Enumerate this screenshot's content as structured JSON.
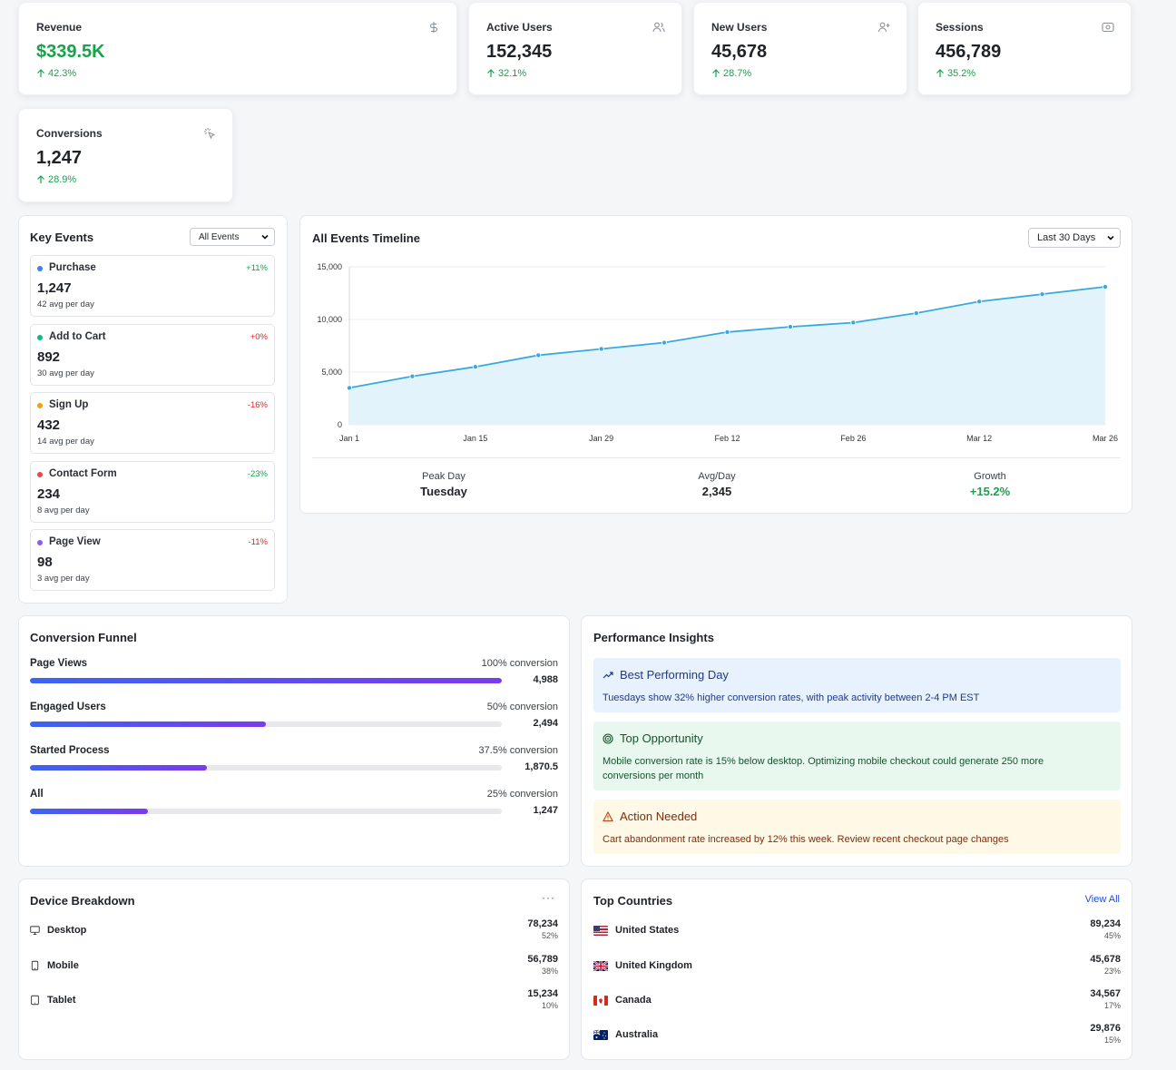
{
  "colors": {
    "positive": "#16a34a",
    "negative": "#dc2626",
    "line": "#38a9e0",
    "fill": "#e3f3fb",
    "funnel_start": "#3b64f3",
    "funnel_end": "#7c3aed",
    "link": "#1d4ed8"
  },
  "stats": [
    {
      "label": "Revenue",
      "value": "$339.5K",
      "change": "42.3%",
      "icon": "dollar-icon"
    },
    {
      "label": "Active Users",
      "value": "152,345",
      "change": "32.1%",
      "icon": "users-icon"
    },
    {
      "label": "New Users",
      "value": "45,678",
      "change": "28.7%",
      "icon": "user-plus-icon"
    },
    {
      "label": "Sessions",
      "value": "456,789",
      "change": "35.2%",
      "icon": "eye-icon"
    },
    {
      "label": "Conversions",
      "value": "1,247",
      "change": "28.9%",
      "icon": "pointer-click-icon"
    }
  ],
  "key_events": {
    "title": "Key Events",
    "filter": "All Events",
    "items": [
      {
        "name": "Purchase",
        "pct": "+11%",
        "value": "1,247",
        "avg": "42 avg per day",
        "dot": "#3b82f6",
        "trend": "up"
      },
      {
        "name": "Add to Cart",
        "pct": "+0%",
        "value": "892",
        "avg": "30 avg per day",
        "dot": "#10b981",
        "trend": "down"
      },
      {
        "name": "Sign Up",
        "pct": "-16%",
        "value": "432",
        "avg": "14 avg per day",
        "dot": "#f59e0b",
        "trend": "down"
      },
      {
        "name": "Contact Form",
        "pct": "-23%",
        "value": "234",
        "avg": "8 avg per day",
        "dot": "#ef4444",
        "trend": "up"
      },
      {
        "name": "Page View",
        "pct": "-11%",
        "value": "98",
        "avg": "3 avg per day",
        "dot": "#8b5cf6",
        "trend": "down"
      }
    ]
  },
  "timeline": {
    "title": "All Events Timeline",
    "range": "Last 30 Days",
    "footer": [
      {
        "label": "Peak Day",
        "value": "Tuesday"
      },
      {
        "label": "Avg/Day",
        "value": "2,345"
      },
      {
        "label": "Growth",
        "value": "+15.2%"
      }
    ]
  },
  "chart_data": {
    "type": "area",
    "x": [
      "Jan 1",
      "Jan 8",
      "Jan 15",
      "Jan 22",
      "Jan 29",
      "Feb 5",
      "Feb 12",
      "Feb 19",
      "Feb 26",
      "Mar 5",
      "Mar 12",
      "Mar 19",
      "Mar 26"
    ],
    "x_tick_labels": [
      "Jan 1",
      "Jan 15",
      "Jan 29",
      "Feb 12",
      "Feb 26",
      "Mar 12",
      "Mar 26"
    ],
    "y_tick_labels": [
      "15,000",
      "10,000",
      "5,000",
      "0"
    ],
    "values": [
      3500,
      4600,
      5500,
      6600,
      7200,
      7800,
      8800,
      9300,
      9700,
      10600,
      11700,
      12400,
      13100
    ],
    "ylim": [
      0,
      15000
    ],
    "grid": true
  },
  "funnel": {
    "title": "Conversion Funnel",
    "steps": [
      {
        "label": "Page Views",
        "conversion": "100% conversion",
        "count": "4,988",
        "fraction": 1.0
      },
      {
        "label": "Engaged Users",
        "conversion": "50% conversion",
        "count": "2,494",
        "fraction": 0.5
      },
      {
        "label": "Started Process",
        "conversion": "37.5% conversion",
        "count": "1,870.5",
        "fraction": 0.375
      },
      {
        "label": "All",
        "conversion": "25% conversion",
        "count": "1,247",
        "fraction": 0.25
      }
    ]
  },
  "insights": {
    "title": "Performance Insights",
    "items": [
      {
        "title": "Best Performing Day",
        "body": "Tuesdays show 32% higher conversion rates, with peak activity between 2-4 PM EST",
        "icon": "trending-up-icon",
        "bg": "#e8f1fe",
        "fg": "#1e3a8a"
      },
      {
        "title": "Top Opportunity",
        "body": "Mobile conversion rate is 15% below desktop. Optimizing mobile checkout could generate 250 more conversions per month",
        "icon": "target-icon",
        "bg": "#e8f8ee",
        "fg": "#14532d"
      },
      {
        "title": "Action Needed",
        "body": "Cart abandonment rate increased by 12% this week. Review recent checkout page changes",
        "icon": "warning-icon",
        "bg": "#fef8e7",
        "fg": "#7c2d12"
      }
    ]
  },
  "devices": {
    "title": "Device Breakdown",
    "more": "···",
    "items": [
      {
        "name": "Desktop",
        "value": "78,234",
        "pct": "52%",
        "icon": "monitor-icon"
      },
      {
        "name": "Mobile",
        "value": "56,789",
        "pct": "38%",
        "icon": "phone-icon"
      },
      {
        "name": "Tablet",
        "value": "15,234",
        "pct": "10%",
        "icon": "tablet-icon"
      }
    ]
  },
  "countries": {
    "title": "Top Countries",
    "view_all": "View All",
    "items": [
      {
        "name": "United States",
        "value": "89,234",
        "pct": "45%",
        "flag": "us-flag-icon"
      },
      {
        "name": "United Kingdom",
        "value": "45,678",
        "pct": "23%",
        "flag": "uk-flag-icon"
      },
      {
        "name": "Canada",
        "value": "34,567",
        "pct": "17%",
        "flag": "canada-flag-icon"
      },
      {
        "name": "Australia",
        "value": "29,876",
        "pct": "15%",
        "flag": "australia-flag-icon"
      }
    ]
  }
}
